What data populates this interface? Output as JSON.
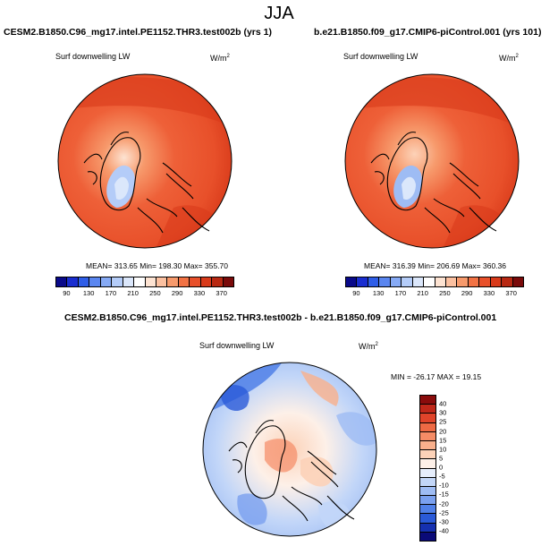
{
  "page": {
    "title": "JJA"
  },
  "panels": [
    {
      "case": "CESM2.B1850.C96_mg17.intel.PE1152.THR3.test002b (yrs 1)",
      "variable": "Surf downwelling LW",
      "units_base": "W/m",
      "units_exp": "2",
      "stats": "MEAN= 313.65  Min= 198.30  Max= 355.70"
    },
    {
      "case": "b.e21.B1850.f09_g17.CMIP6-piControl.001 (yrs 101)",
      "variable": "Surf downwelling LW",
      "units_base": "W/m",
      "units_exp": "2",
      "stats": "MEAN= 316.39  Min= 206.69  Max= 360.36"
    }
  ],
  "colorbar": {
    "ticks": [
      "90",
      "130",
      "170",
      "210",
      "250",
      "290",
      "330",
      "370"
    ],
    "colors": [
      "#0a0a8a",
      "#1a2ed0",
      "#2f5ee8",
      "#5a86f0",
      "#86aaf5",
      "#b4ccf8",
      "#dbe7fb",
      "#ffffff",
      "#fde3d2",
      "#fbc0a0",
      "#f79a6c",
      "#f27244",
      "#e8502a",
      "#d83a1a",
      "#b82812",
      "#7a0a0a"
    ]
  },
  "diff_panel": {
    "case": "CESM2.B1850.C96_mg17.intel.PE1152.THR3.test002b - b.e21.B1850.f09_g17.CMIP6-piControl.001",
    "variable": "Surf downwelling LW",
    "units_base": "W/m",
    "units_exp": "2",
    "stats": "MIN = -26.17 MAX =  19.15"
  },
  "diff_colorbar": {
    "labels": [
      "40",
      "30",
      "25",
      "20",
      "15",
      "10",
      "5",
      "0",
      "-5",
      "-10",
      "-15",
      "-20",
      "-25",
      "-30",
      "-40"
    ],
    "colors": [
      "#8a0c0c",
      "#c0281a",
      "#e0442a",
      "#ee6a44",
      "#f58c66",
      "#f9b08c",
      "#fcd2b8",
      "#fdf0e8",
      "#e6eefc",
      "#c2d6f8",
      "#9ebcf4",
      "#7aa0ef",
      "#5080e8",
      "#2a5ad8",
      "#1530b0",
      "#0a0a78"
    ]
  }
}
